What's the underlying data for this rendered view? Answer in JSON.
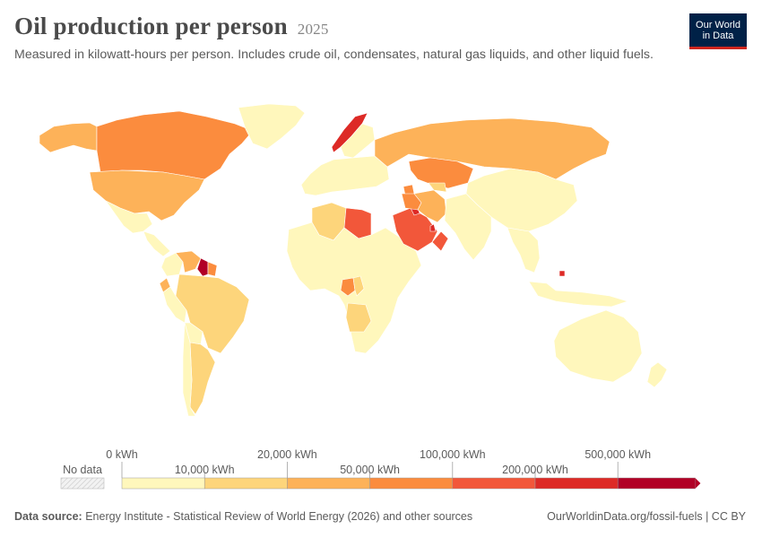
{
  "header": {
    "title": "Oil production per person",
    "year": "2025",
    "subtitle": "Measured in kilowatt-hours per person. Includes crude oil, condensates, natural gas liquids, and other liquid fuels.",
    "logo_line1": "Our World",
    "logo_line2": "in Data"
  },
  "legend": {
    "no_data_label": "No data",
    "top_labels": [
      "0 kWh",
      "20,000 kWh",
      "100,000 kWh",
      "500,000 kWh"
    ],
    "bottom_labels": [
      "10,000 kWh",
      "50,000 kWh",
      "200,000 kWh"
    ],
    "bins": [
      {
        "from": 0,
        "to": 10000,
        "color": "#fff7bc"
      },
      {
        "from": 10000,
        "to": 20000,
        "color": "#fdd57b"
      },
      {
        "from": 20000,
        "to": 50000,
        "color": "#fdb259"
      },
      {
        "from": 50000,
        "to": 100000,
        "color": "#fb8c3e"
      },
      {
        "from": 100000,
        "to": 200000,
        "color": "#f2573a"
      },
      {
        "from": 200000,
        "to": 500000,
        "color": "#dd2a26"
      },
      {
        "from": 500000,
        "to": null,
        "color": "#b10026"
      }
    ],
    "no_data_color": "#e8e8e8"
  },
  "chart_data": {
    "type": "choropleth",
    "unit": "kWh",
    "year": 2025,
    "regions": [
      {
        "name": "Alaska",
        "bin": 2
      },
      {
        "name": "Canada",
        "bin": 3
      },
      {
        "name": "United States",
        "bin": 2
      },
      {
        "name": "Greenland",
        "bin": 0
      },
      {
        "name": "Mexico",
        "bin": 0
      },
      {
        "name": "Central America",
        "bin": 0
      },
      {
        "name": "Colombia",
        "bin": 0
      },
      {
        "name": "Venezuela",
        "bin": 2
      },
      {
        "name": "Guyana",
        "bin": 6
      },
      {
        "name": "Suriname",
        "bin": 3
      },
      {
        "name": "Ecuador",
        "bin": 2
      },
      {
        "name": "Peru",
        "bin": 0
      },
      {
        "name": "Brazil",
        "bin": 1
      },
      {
        "name": "Bolivia",
        "bin": 0
      },
      {
        "name": "Argentina",
        "bin": 1
      },
      {
        "name": "Chile",
        "bin": 0
      },
      {
        "name": "Norway",
        "bin": 5
      },
      {
        "name": "Scandinavia",
        "bin": 0
      },
      {
        "name": "Europe",
        "bin": 0
      },
      {
        "name": "Russia",
        "bin": 2
      },
      {
        "name": "Kazakhstan",
        "bin": 3
      },
      {
        "name": "Azerbaijan",
        "bin": 3
      },
      {
        "name": "China & East Asia",
        "bin": 0
      },
      {
        "name": "Algeria",
        "bin": 1
      },
      {
        "name": "Libya",
        "bin": 4
      },
      {
        "name": "West & East Africa",
        "bin": 0
      },
      {
        "name": "Gabon",
        "bin": 3
      },
      {
        "name": "Congo",
        "bin": 1
      },
      {
        "name": "Angola",
        "bin": 1
      },
      {
        "name": "Saudi Arabia",
        "bin": 4
      },
      {
        "name": "Oman",
        "bin": 4
      },
      {
        "name": "Kuwait",
        "bin": 5
      },
      {
        "name": "Qatar",
        "bin": 5
      },
      {
        "name": "Iraq",
        "bin": 3
      },
      {
        "name": "Iran",
        "bin": 2
      },
      {
        "name": "Turkmenistan",
        "bin": 1
      },
      {
        "name": "India & South Asia",
        "bin": 0
      },
      {
        "name": "Southeast Asia",
        "bin": 0
      },
      {
        "name": "Brunei",
        "bin": 5
      },
      {
        "name": "Indonesia",
        "bin": 0
      },
      {
        "name": "Australia",
        "bin": 0
      },
      {
        "name": "New Zealand",
        "bin": 0
      }
    ]
  },
  "footer": {
    "source_label": "Data source:",
    "source_text": "Energy Institute - Statistical Review of World Energy (2026) and other sources",
    "url": "OurWorldinData.org/fossil-fuels | CC BY"
  }
}
